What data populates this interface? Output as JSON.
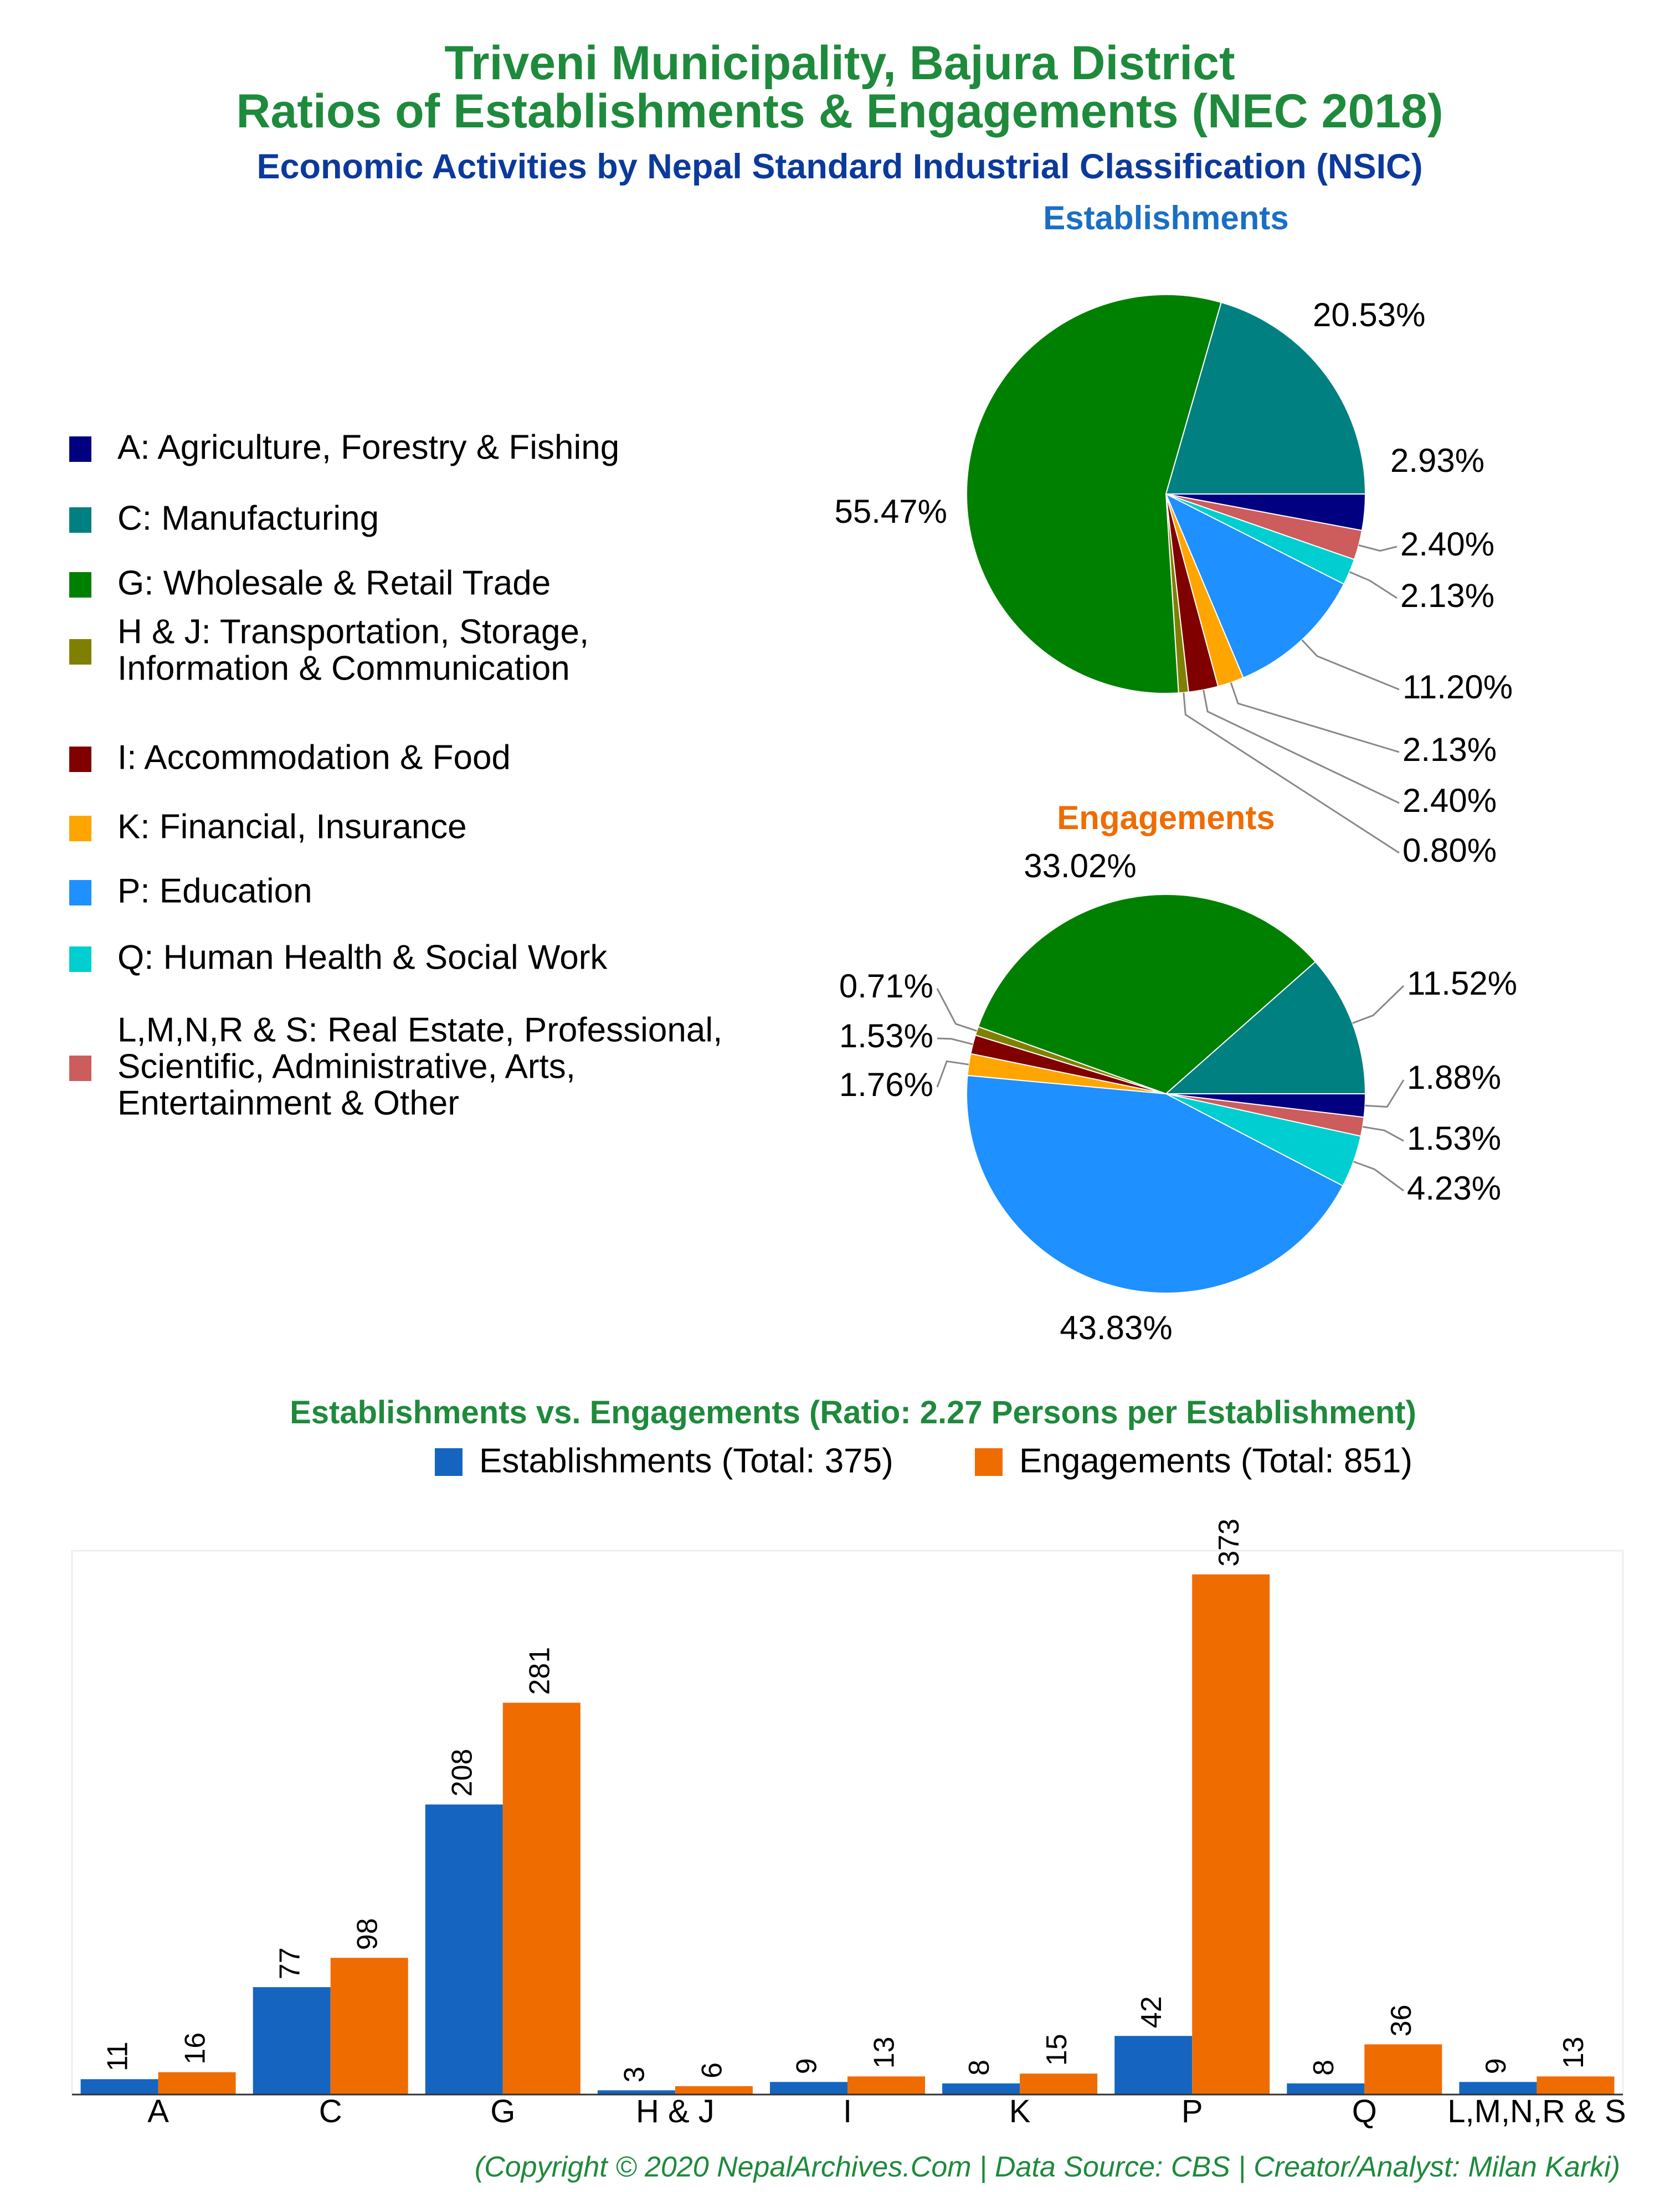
{
  "header": {
    "title_line1": "Triveni Municipality, Bajura District",
    "title_line2": "Ratios of Establishments & Engagements (NEC 2018)",
    "subtitle": "Economic Activities by Nepal Standard Industrial Classification (NSIC)"
  },
  "colors": {
    "title": "#1e8a3c",
    "subtitle": "#0b3a9c",
    "establishments_title": "#1a6fc4",
    "engagements_title": "#ef6c00",
    "bar_establishments": "#1565c0",
    "bar_engagements": "#ef6c00"
  },
  "legend": {
    "items": [
      {
        "key": "A",
        "label": "A: Agriculture, Forestry & Fishing",
        "color": "#000080"
      },
      {
        "key": "C",
        "label": "C: Manufacturing",
        "color": "#008080"
      },
      {
        "key": "G",
        "label": "G: Wholesale & Retail Trade",
        "color": "#008000"
      },
      {
        "key": "HJ",
        "label_lines": [
          "H & J: Transportation, Storage,",
          "Information & Communication"
        ],
        "color": "#808000"
      },
      {
        "key": "I",
        "label": "I: Accommodation & Food",
        "color": "#800000"
      },
      {
        "key": "K",
        "label": "K: Financial, Insurance",
        "color": "#ffa500"
      },
      {
        "key": "P",
        "label": "P: Education",
        "color": "#1e90ff"
      },
      {
        "key": "Q",
        "label": "Q: Human Health & Social Work",
        "color": "#00ced1"
      },
      {
        "key": "L",
        "label_lines": [
          "L,M,N,R & S: Real Estate, Professional,",
          "Scientific, Administrative, Arts,",
          "Entertainment & Other"
        ],
        "color": "#cd5c5c"
      }
    ]
  },
  "chart_data": [
    {
      "type": "pie",
      "title": "Establishments",
      "slices": [
        {
          "key": "A",
          "value": 2.93,
          "label": "2.93%"
        },
        {
          "key": "L",
          "value": 2.4,
          "label": "2.40%"
        },
        {
          "key": "Q",
          "value": 2.13,
          "label": "2.13%"
        },
        {
          "key": "P",
          "value": 11.2,
          "label": "11.20%"
        },
        {
          "key": "K",
          "value": 2.13,
          "label": "2.13%"
        },
        {
          "key": "I",
          "value": 2.4,
          "label": "2.40%"
        },
        {
          "key": "HJ",
          "value": 0.8,
          "label": "0.80%"
        },
        {
          "key": "G",
          "value": 55.47,
          "label": "55.47%"
        },
        {
          "key": "C",
          "value": 20.53,
          "label": "20.53%"
        }
      ]
    },
    {
      "type": "pie",
      "title": "Engagements",
      "slices": [
        {
          "key": "A",
          "value": 1.88,
          "label": "1.88%"
        },
        {
          "key": "L",
          "value": 1.53,
          "label": "1.53%"
        },
        {
          "key": "Q",
          "value": 4.23,
          "label": "4.23%"
        },
        {
          "key": "P",
          "value": 43.83,
          "label": "43.83%"
        },
        {
          "key": "K",
          "value": 1.76,
          "label": "1.76%"
        },
        {
          "key": "I",
          "value": 1.53,
          "label": "1.53%"
        },
        {
          "key": "HJ",
          "value": 0.71,
          "label": "0.71%"
        },
        {
          "key": "G",
          "value": 33.02,
          "label": "33.02%"
        },
        {
          "key": "C",
          "value": 11.52,
          "label": "11.52%"
        }
      ]
    },
    {
      "type": "bar",
      "title": "Establishments vs. Engagements (Ratio: 2.27 Persons per Establishment)",
      "categories": [
        "A",
        "C",
        "G",
        "H & J",
        "I",
        "K",
        "P",
        "Q",
        "L,M,N,R & S"
      ],
      "series": [
        {
          "name": "Establishments (Total: 375)",
          "values": [
            11,
            77,
            208,
            3,
            9,
            8,
            42,
            8,
            9
          ]
        },
        {
          "name": "Engagements (Total: 851)",
          "values": [
            16,
            98,
            281,
            6,
            13,
            15,
            373,
            36,
            13
          ]
        }
      ],
      "ylim": [
        0,
        390
      ],
      "legend_position": "top"
    }
  ],
  "footer": {
    "credit": "(Copyright © 2020 NepalArchives.Com | Data Source: CBS | Creator/Analyst: Milan Karki)"
  }
}
